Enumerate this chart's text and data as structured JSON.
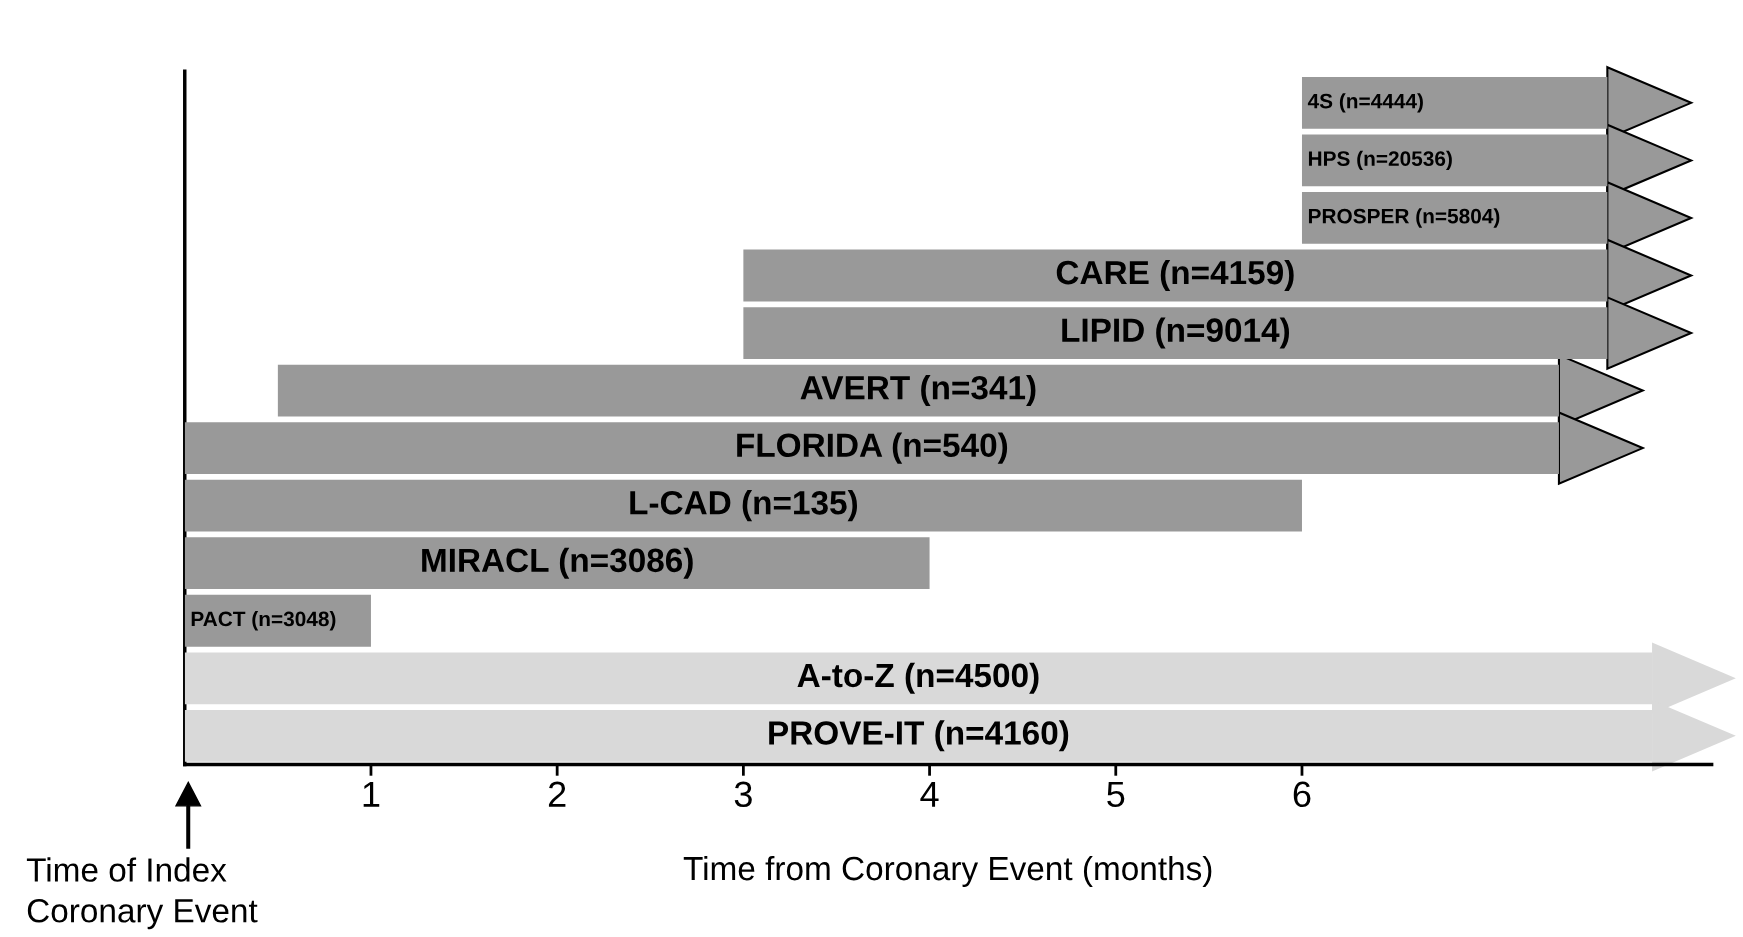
{
  "chart_data": {
    "type": "bar",
    "orientation": "horizontal",
    "categories": [
      "4S (n=4444)",
      "HPS (n=20536)",
      "PROSPER (n=5804)",
      "CARE (n=4159)",
      "LIPID (n=9014)",
      "AVERT (n=341)",
      "FLORIDA (n=540)",
      "L-CAD (n=135)",
      "MIRACL (n=3086)",
      "PACT (n=3048)",
      "A-to-Z (n=4500)",
      "PROVE-IT (n=4160)"
    ],
    "base": [
      6,
      6,
      6,
      3,
      3,
      0.5,
      0,
      0,
      0,
      0,
      0,
      0
    ],
    "values": [
      1.64,
      1.64,
      1.64,
      4.64,
      4.64,
      6.88,
      7.38,
      6,
      4,
      1,
      7.88,
      7.88
    ],
    "colors": [
      "#999999",
      "#999999",
      "#999999",
      "#999999",
      "#999999",
      "#999999",
      "#999999",
      "#999999",
      "#999999",
      "#999999",
      "#d9d9d9",
      "#d9d9d9"
    ],
    "xlim": [
      0,
      8.2
    ],
    "xticks": [
      1,
      2,
      3,
      4,
      5,
      6
    ],
    "xlabel": "Time from Coronary Event (months)",
    "annotations": [
      "Time of Index\nCoronary Event"
    ]
  }
}
